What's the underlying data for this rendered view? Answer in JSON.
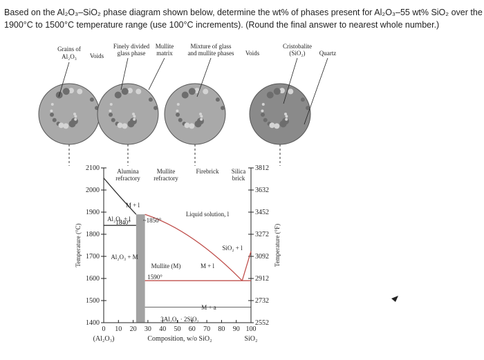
{
  "question": {
    "lines": [
      "Based on the Al₂O₃–SiO₂ phase diagram shown below, determine the wt% of phases present for Al₂O₃–55 wt% SiO₂ over the",
      "1900°C to 1500°C temperature range (use 100°C increments). (Round the final answer to nearest whole number.)"
    ]
  },
  "micrographs": {
    "labels": [
      "Grains of",
      "Al₂O₃",
      "Voids",
      "Finely divided",
      "glass phase",
      "Mullite",
      "matrix",
      "Mixture of glass",
      "and mullite phases",
      "Voids",
      "Cristobalite",
      "(SiO₂)",
      "Quartz"
    ]
  },
  "diagram": {
    "products": [
      "Alumina",
      "refractory",
      "Mullite",
      "refractory",
      "Firebrick",
      "Silica",
      "brick"
    ],
    "regions": [
      "Liquid solution, l",
      "M + l",
      "Al₂O₃ + l",
      "1840°",
      "~1850°",
      "Al₂O₃ + M",
      "Mullite (M)",
      "1590°",
      "M + l",
      "SiO₂ + l",
      "M + a",
      "3Al₂O₃ · 2SiO₂"
    ],
    "y_label": "Temperature (°C)",
    "y2_label": "Temperature (°F)",
    "yticks": [
      "2100",
      "2000",
      "1900",
      "1800",
      "1700",
      "1600",
      "1500",
      "1400"
    ],
    "y2ticks": [
      "3812",
      "3632",
      "3452",
      "3272",
      "3092",
      "2912",
      "2732",
      "2552"
    ],
    "xticks": [
      "0",
      "10",
      "20",
      "30",
      "40",
      "50",
      "60",
      "70",
      "80",
      "90",
      "100"
    ],
    "x_left": "(Al₂O₃)",
    "x_label": "Composition, w/o SiO₂",
    "x_right": "SiO₂"
  }
}
